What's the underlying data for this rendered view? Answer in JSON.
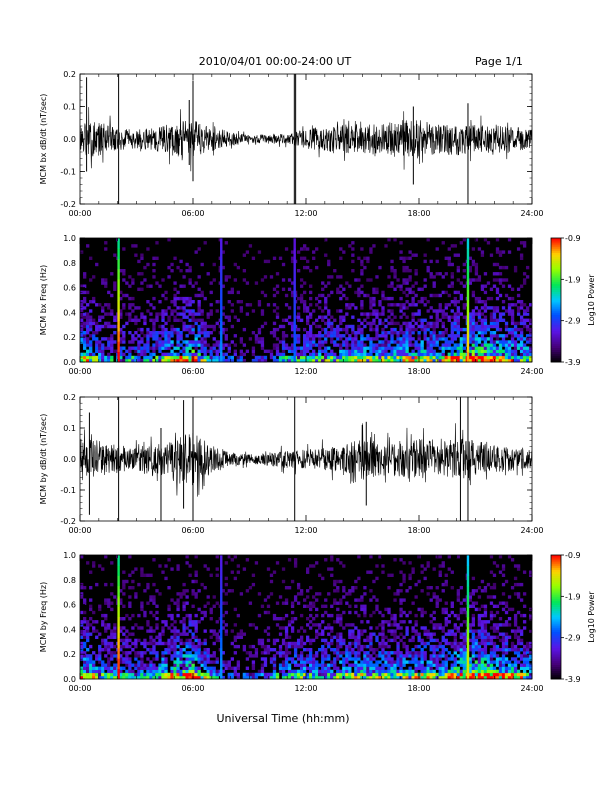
{
  "header": {
    "title": "2010/04/01   00:00-24:00 UT",
    "page": "Page 1/1"
  },
  "footer": {
    "xlabel": "Universal Time (hh:mm)"
  },
  "colors": {
    "background": "#ffffff",
    "trace": "#000000",
    "spectrogram_background": "#000000"
  },
  "chart_data": [
    {
      "type": "line",
      "ylabel": "MCM bx dB/dt (nT/sec)",
      "xlim": [
        0,
        24
      ],
      "ylim": [
        -0.2,
        0.2
      ],
      "xticks": [
        "00:00",
        "06:00",
        "12:00",
        "18:00",
        "24:00"
      ],
      "yticks": [
        "-0.2",
        "-0.1",
        "0.0",
        "0.1",
        "0.2"
      ],
      "envelope_hours": [
        0,
        1,
        2,
        3,
        4,
        5,
        6,
        7,
        8,
        9,
        10,
        11,
        12,
        13,
        14,
        15,
        16,
        17,
        18,
        19,
        20,
        21,
        22,
        23,
        24
      ],
      "envelope_amplitude": [
        0.08,
        0.07,
        0.05,
        0.04,
        0.05,
        0.07,
        0.08,
        0.05,
        0.03,
        0.015,
        0.02,
        0.02,
        0.04,
        0.05,
        0.06,
        0.06,
        0.06,
        0.08,
        0.08,
        0.06,
        0.07,
        0.06,
        0.06,
        0.05,
        0.04
      ],
      "spikes": [
        {
          "x": 0.35,
          "ymin": -0.1,
          "ymax": 0.19
        },
        {
          "x": 2.05,
          "ymin": -0.2,
          "ymax": 0.2
        },
        {
          "x": 5.8,
          "ymin": -0.08,
          "ymax": 0.12
        },
        {
          "x": 6.0,
          "ymin": -0.13,
          "ymax": 0.18
        },
        {
          "x": 11.38,
          "ymin": -0.2,
          "ymax": 0.2
        },
        {
          "x": 11.45,
          "ymin": -0.2,
          "ymax": 0.2
        },
        {
          "x": 17.7,
          "ymin": -0.14,
          "ymax": 0.1
        },
        {
          "x": 20.6,
          "ymin": -0.2,
          "ymax": 0.11
        }
      ]
    },
    {
      "type": "heatmap",
      "ylabel": "MCM bx Freq (Hz)",
      "colorbar_label": "Log10 Power",
      "colorbar_ticks": [
        "-0.9",
        "-1.9",
        "-2.9",
        "-3.9"
      ],
      "clim": [
        -3.9,
        -0.9
      ],
      "xlim": [
        0,
        24
      ],
      "ylim": [
        0,
        1.0
      ],
      "xticks": [
        "00:00",
        "06:00",
        "12:00",
        "18:00",
        "24:00"
      ],
      "yticks": [
        "0.0",
        "0.2",
        "0.4",
        "0.6",
        "0.8",
        "1.0"
      ],
      "activity_hours": [
        0,
        1,
        2,
        3,
        4,
        5,
        6,
        7,
        8,
        9,
        10,
        11,
        12,
        13,
        14,
        15,
        16,
        17,
        18,
        19,
        20,
        21,
        22,
        23,
        24
      ],
      "activity_level": [
        0.6,
        0.4,
        0.35,
        0.35,
        0.4,
        0.55,
        0.7,
        0.35,
        0.2,
        0.1,
        0.15,
        0.35,
        0.4,
        0.45,
        0.45,
        0.5,
        0.45,
        0.5,
        0.55,
        0.5,
        0.65,
        0.75,
        0.65,
        0.55,
        0.5
      ],
      "broadband_lines": [
        {
          "x": 2.05,
          "strength": 1.0
        },
        {
          "x": 7.5,
          "strength": 0.45
        },
        {
          "x": 11.4,
          "strength": 0.4
        },
        {
          "x": 20.6,
          "strength": 0.9
        }
      ]
    },
    {
      "type": "line",
      "ylabel": "MCM by dB/dt (nT/sec)",
      "xlim": [
        0,
        24
      ],
      "ylim": [
        -0.2,
        0.2
      ],
      "xticks": [
        "00:00",
        "06:00",
        "12:00",
        "18:00",
        "24:00"
      ],
      "yticks": [
        "-0.2",
        "-0.1",
        "0.0",
        "0.1",
        "0.2"
      ],
      "envelope_hours": [
        0,
        1,
        2,
        3,
        4,
        5,
        6,
        7,
        8,
        9,
        10,
        11,
        12,
        13,
        14,
        15,
        16,
        17,
        18,
        19,
        20,
        21,
        22,
        23,
        24
      ],
      "envelope_amplitude": [
        0.09,
        0.08,
        0.06,
        0.05,
        0.06,
        0.09,
        0.12,
        0.06,
        0.03,
        0.02,
        0.03,
        0.04,
        0.04,
        0.05,
        0.06,
        0.09,
        0.07,
        0.08,
        0.09,
        0.07,
        0.09,
        0.08,
        0.06,
        0.05,
        0.04
      ],
      "spikes": [
        {
          "x": 0.5,
          "ymin": -0.18,
          "ymax": 0.15
        },
        {
          "x": 2.05,
          "ymin": -0.2,
          "ymax": 0.2
        },
        {
          "x": 4.3,
          "ymin": -0.2,
          "ymax": 0.1
        },
        {
          "x": 5.5,
          "ymin": -0.16,
          "ymax": 0.19
        },
        {
          "x": 6.0,
          "ymin": -0.2,
          "ymax": 0.2
        },
        {
          "x": 11.4,
          "ymin": -0.2,
          "ymax": 0.2
        },
        {
          "x": 15.2,
          "ymin": -0.15,
          "ymax": 0.12
        },
        {
          "x": 20.2,
          "ymin": -0.2,
          "ymax": 0.2
        },
        {
          "x": 20.6,
          "ymin": -0.2,
          "ymax": 0.2
        }
      ]
    },
    {
      "type": "heatmap",
      "ylabel": "MCM by Freq (Hz)",
      "colorbar_label": "Log10 Power",
      "colorbar_ticks": [
        "-0.9",
        "-1.9",
        "-2.9",
        "-3.9"
      ],
      "clim": [
        -3.9,
        -0.9
      ],
      "xlim": [
        0,
        24
      ],
      "ylim": [
        0,
        1.0
      ],
      "xticks": [
        "00:00",
        "06:00",
        "12:00",
        "18:00",
        "24:00"
      ],
      "yticks": [
        "0.0",
        "0.2",
        "0.4",
        "0.6",
        "0.8",
        "1.0"
      ],
      "activity_hours": [
        0,
        1,
        2,
        3,
        4,
        5,
        6,
        7,
        8,
        9,
        10,
        11,
        12,
        13,
        14,
        15,
        16,
        17,
        18,
        19,
        20,
        21,
        22,
        23,
        24
      ],
      "activity_level": [
        0.65,
        0.45,
        0.4,
        0.4,
        0.45,
        0.6,
        0.75,
        0.35,
        0.2,
        0.15,
        0.25,
        0.45,
        0.45,
        0.45,
        0.5,
        0.55,
        0.5,
        0.5,
        0.55,
        0.5,
        0.65,
        0.75,
        0.65,
        0.55,
        0.5
      ],
      "broadband_lines": [
        {
          "x": 2.05,
          "strength": 1.0
        },
        {
          "x": 7.5,
          "strength": 0.45
        },
        {
          "x": 20.6,
          "strength": 0.85
        }
      ]
    }
  ]
}
